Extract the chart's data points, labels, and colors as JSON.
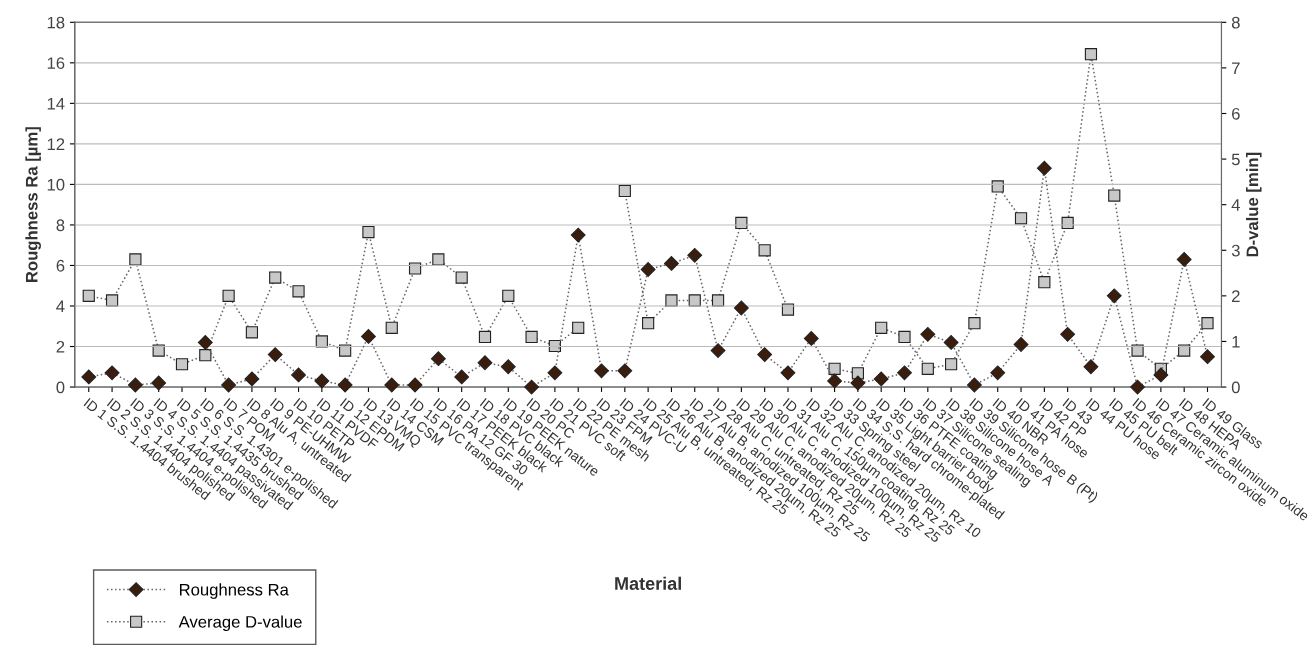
{
  "chart_data": {
    "type": "line",
    "xlabel": "Material",
    "ylabel": "Roughness Ra [µm]",
    "y2label": "D-value [min]",
    "categories": [
      "ID 1 S.S. 1.4404 brushed",
      "ID 2 S.S. 1.4404 polished",
      "ID 3 S.S. 1.4404 e-polished",
      "ID 4 S.S. 1.4404 passivated",
      "ID 5 S.S. 1.4435 brushed",
      "ID 6 S.S. 1.4301 e-polished",
      "ID 7 POM",
      "ID 8 Alu A, untreated",
      "ID 9 PE-UHMW",
      "ID 10 PETP",
      "ID 11 PVDF",
      "ID 12 EPDM",
      "ID 13 VMQ",
      "ID 14 CSM",
      "ID 15 PVC transparent",
      "ID 16 PA 12 GF 30",
      "ID 17 PEEK black",
      "ID 18 PVC black",
      "ID 19 PEEK nature",
      "ID 20 PC",
      "ID 21 PVC soft",
      "ID 22 PE mesh",
      "ID 23 FPM",
      "ID 24 PVC-U",
      "ID 25 Alu B, untreated, Rz 25",
      "ID 26 Alu B, anodized 20µm, Rz 25",
      "ID 27 Alu B, anodized 100µm, Rz 25",
      "ID 28 Alu C, untreated, Rz 25",
      "ID 29 Alu C, anodized 20µm, Rz 25",
      "ID 30 Alu C, anodized 100µm, Rz 25",
      "ID 31 Alu C, 150µm coating, Rz 25",
      "ID 32 Alu C, anodized 20µm, Rz 10",
      "ID 33 Spring steel",
      "ID 34 S.S. hard chrome-plated",
      "ID 35 Light barrier body",
      "ID 36 PTFE coating",
      "ID 37 Silicone sealing",
      "ID 38 Silicone hose A",
      "ID 39 Silicone hose B (Pt)",
      "ID 40 NBR",
      "ID 41 PA hose",
      "ID 42 PP",
      "ID 43",
      "ID 44 PU hose",
      "ID 45 PU belt",
      "ID 46 Ceramic zircon oxide",
      "ID 47 Ceramic aluminum oxide",
      "ID 48 HEPA",
      "ID 49 Glass"
    ],
    "series": [
      {
        "name": "Roughness Ra",
        "color": "#3b1d0e",
        "marker": "diamond",
        "values": [
          0.5,
          0.7,
          0.1,
          0.2,
          null,
          2.2,
          0.1,
          0.4,
          1.6,
          0.6,
          0.3,
          0.1,
          2.5,
          0.1,
          0.1,
          1.4,
          0.5,
          1.2,
          1.0,
          0.0,
          0.7,
          7.5,
          0.8,
          0.8,
          5.8,
          6.1,
          6.5,
          1.8,
          3.9,
          1.6,
          0.7,
          2.4,
          0.3,
          0.2,
          0.4,
          0.7,
          2.6,
          2.2,
          0.1,
          0.7,
          2.1,
          10.8,
          2.6,
          1.0,
          4.5,
          0.0,
          0.6,
          6.3,
          1.5
        ]
      },
      {
        "name": "Average D-value",
        "color": "#c8c8c8",
        "marker": "square",
        "axis": "y2",
        "values": [
          2.0,
          1.9,
          2.8,
          0.8,
          0.5,
          0.7,
          2.0,
          1.2,
          2.4,
          2.1,
          1.0,
          0.8,
          3.4,
          1.3,
          2.6,
          2.8,
          2.4,
          1.1,
          2.0,
          1.1,
          0.9,
          1.3,
          null,
          4.3,
          1.4,
          1.9,
          1.9,
          1.9,
          3.6,
          3.0,
          1.7,
          null,
          0.4,
          0.3,
          1.3,
          1.1,
          0.4,
          0.5,
          1.4,
          4.4,
          3.7,
          2.3,
          3.6,
          7.3,
          4.2,
          0.8,
          0.4,
          0.8,
          1.4
        ]
      }
    ],
    "line_style": "dotted",
    "ylim": [
      0,
      18
    ],
    "yticks": [
      0,
      2,
      4,
      6,
      8,
      10,
      12,
      14,
      16,
      18
    ],
    "y2lim": [
      0,
      8
    ],
    "y2ticks": [
      0,
      1,
      2,
      3,
      4,
      5,
      6,
      7,
      8
    ],
    "grid": "y",
    "legend": "bottom left"
  }
}
